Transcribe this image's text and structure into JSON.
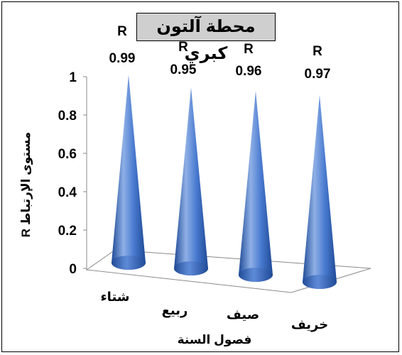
{
  "chart_data": {
    "type": "bar",
    "shape": "cone-3d",
    "title": "محطة آلتون كبري",
    "xlabel": "فصول السنة",
    "ylabel": "مستوى الإرتباط R",
    "categories": [
      "شتاء",
      "ربيع",
      "صيف",
      "خريف"
    ],
    "values": [
      0.99,
      0.95,
      0.96,
      0.97
    ],
    "data_labels": [
      {
        "line1": "R",
        "line2": "0.99"
      },
      {
        "line1": "R",
        "line2": "0.95"
      },
      {
        "line1": "R",
        "line2": "0.96"
      },
      {
        "line1": "R",
        "line2": "0.97"
      }
    ],
    "ylim": [
      0,
      1
    ],
    "yticks": [
      "0",
      "0.2",
      "0.4",
      "0.6",
      "0.8",
      "1"
    ],
    "grid": false,
    "legend": "none",
    "colors": {
      "cone_light": "#8fb0e6",
      "cone_mid": "#4a7bd0",
      "cone_dark": "#1f4a96",
      "title_bg": "#cfcfcf"
    }
  }
}
